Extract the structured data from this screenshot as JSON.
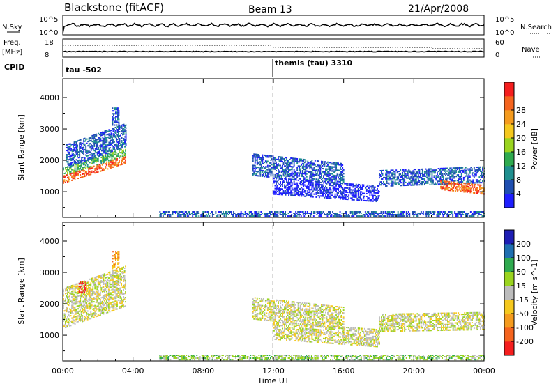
{
  "header": {
    "station": "Blackstone (fitACF)",
    "beam": "Beam 13",
    "date": "21/Apr/2008"
  },
  "strips": {
    "nsky_label": "N.Sky",
    "nsky_tick_top": "10^5",
    "nsky_tick_bottom": "10^0",
    "nsearch_label": "N.Search",
    "nsearch_tick_top": "10^5",
    "nsearch_tick_bottom": "10^0",
    "freq_label": "Freq.",
    "freq_unit": "[MHz]",
    "freq_tick_top": "18",
    "freq_tick_bottom": "8",
    "nave_label": "Nave",
    "nave_tick_top": "60",
    "nave_tick_bottom": "0",
    "cpid_label": "CPID",
    "cpid_seg1": "tau -502",
    "cpid_seg2": "themis (tau) 3310"
  },
  "colors": {
    "power": [
      "#1e1eff",
      "#1f4fb0",
      "#1f8f8f",
      "#2faa4f",
      "#9ad41f",
      "#f5c81e",
      "#f59b1e",
      "#f5641e",
      "#f51e1e"
    ],
    "velocity": [
      "#f51e1e",
      "#f5641e",
      "#f59b1e",
      "#f5c81e",
      "#bcbcbc",
      "#9ad41f",
      "#2faa4f",
      "#1f6fb0",
      "#1e1eb4"
    ],
    "ground": "#c8c8c8"
  },
  "chart_data": [
    {
      "type": "heatmap",
      "panel": "power",
      "ylabel": "Slant Range [km]",
      "yticks": [
        1000,
        2000,
        3000,
        4000
      ],
      "ylim": [
        180,
        4600
      ],
      "xlim": [
        0,
        24
      ],
      "colorbar_label": "Power [dB]",
      "colorbar_ticks": [
        "4",
        "8",
        "12",
        "16",
        "20",
        "24",
        "28"
      ],
      "regions": [
        {
          "t0": 0.0,
          "t1": 3.6,
          "r0": 1250,
          "r1": 1500,
          "slope": 180,
          "level": 7
        },
        {
          "t0": 0.0,
          "t1": 3.6,
          "r0": 1500,
          "r1": 1750,
          "slope": 180,
          "level": 3
        },
        {
          "t0": 0.2,
          "t1": 3.6,
          "r0": 1750,
          "r1": 2500,
          "slope": 200,
          "level": 1
        },
        {
          "t0": 2.8,
          "t1": 3.2,
          "r0": 3100,
          "r1": 3650,
          "slope": 0,
          "level": 1
        },
        {
          "t0": 10.8,
          "t1": 16.0,
          "r0": 1500,
          "r1": 2200,
          "slope": -60,
          "level": 1
        },
        {
          "t0": 12.0,
          "t1": 18.0,
          "r0": 900,
          "r1": 1400,
          "slope": -40,
          "level": 0
        },
        {
          "t0": 18.0,
          "t1": 24.0,
          "r0": 1150,
          "r1": 1650,
          "slope": 20,
          "level": 1
        },
        {
          "t0": 21.5,
          "t1": 24.0,
          "r0": 1050,
          "r1": 1350,
          "slope": -60,
          "level": 7
        },
        {
          "t0": 5.5,
          "t1": 24.0,
          "r0": 200,
          "r1": 380,
          "slope": 0,
          "level": 1
        }
      ]
    },
    {
      "type": "heatmap",
      "panel": "velocity",
      "ylabel": "Slant Range [km]",
      "yticks": [
        1000,
        2000,
        3000,
        4000
      ],
      "ylim": [
        180,
        4600
      ],
      "xlim": [
        0,
        24
      ],
      "xticks": [
        "00:00",
        "04:00",
        "08:00",
        "12:00",
        "16:00",
        "20:00",
        "00:00"
      ],
      "xlabel": "Time UT",
      "colorbar_label": "Velocity [m s^-1]",
      "colorbar_ticks": [
        "-200",
        "-100",
        "-50",
        "-15",
        "15",
        "50",
        "100",
        "200"
      ],
      "regions": [
        {
          "t0": 0.0,
          "t1": 3.6,
          "r0": 1200,
          "r1": 2500,
          "slope": 200,
          "level": 4
        },
        {
          "t0": 0.9,
          "t1": 1.3,
          "r0": 2350,
          "r1": 2700,
          "slope": 0,
          "level": 0
        },
        {
          "t0": 2.8,
          "t1": 3.2,
          "r0": 3100,
          "r1": 3650,
          "slope": 0,
          "level": 2
        },
        {
          "t0": 10.8,
          "t1": 16.0,
          "r0": 1500,
          "r1": 2200,
          "slope": -60,
          "level": 4
        },
        {
          "t0": 12.0,
          "t1": 18.0,
          "r0": 850,
          "r1": 1400,
          "slope": -40,
          "level": 4
        },
        {
          "t0": 18.0,
          "t1": 24.0,
          "r0": 1100,
          "r1": 1650,
          "slope": 10,
          "level": 4
        },
        {
          "t0": 5.5,
          "t1": 24.0,
          "r0": 200,
          "r1": 380,
          "slope": 0,
          "level": 5
        }
      ]
    }
  ]
}
